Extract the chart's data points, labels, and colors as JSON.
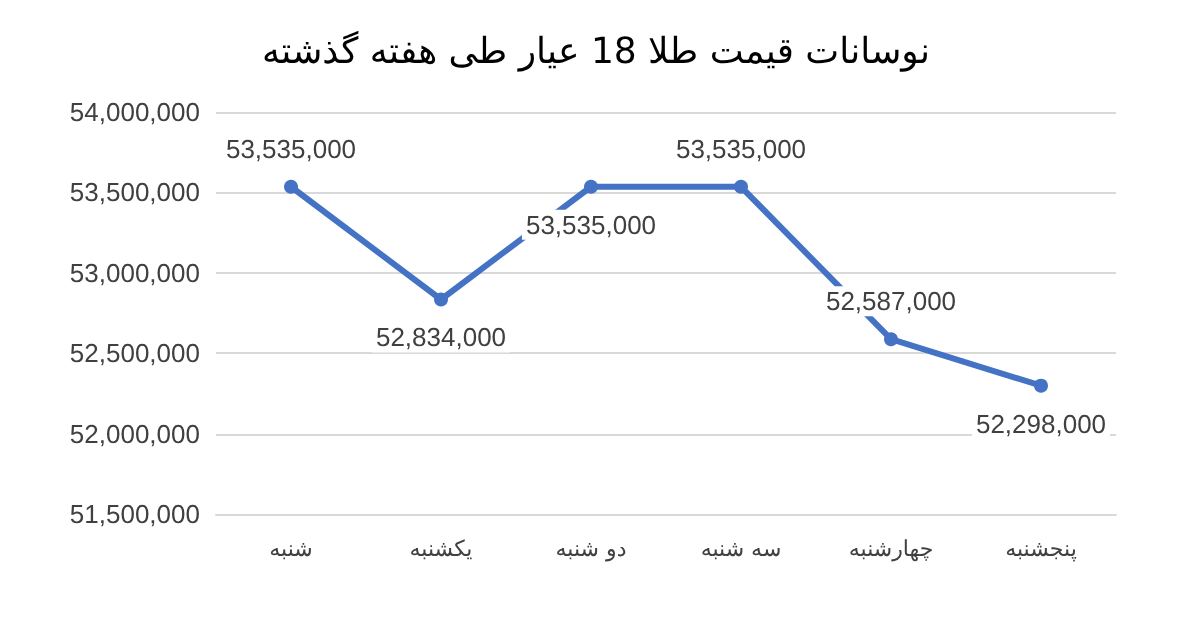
{
  "chart_data": {
    "type": "line",
    "title": "نوسانات قیمت طلا 18 عیار طی هفته گذشته",
    "categories": [
      "شنبه",
      "یکشنبه",
      "دو شنبه",
      "سه شنبه",
      "چهارشنبه",
      "پنجشنبه"
    ],
    "values": [
      53535000,
      52834000,
      53535000,
      53535000,
      52587000,
      52298000
    ],
    "value_labels": [
      "53,535,000",
      "52,834,000",
      "53,535,000",
      "53,535,000",
      "52,587,000",
      "52,298,000"
    ],
    "color": "#4472c4",
    "ylim": [
      51500000,
      54000000
    ],
    "yticks": [
      {
        "value": 51500000,
        "label": "51,500,000"
      },
      {
        "value": 52000000,
        "label": "52,000,000"
      },
      {
        "value": 52500000,
        "label": "52,500,000"
      },
      {
        "value": 53000000,
        "label": "53,000,000"
      },
      {
        "value": 53500000,
        "label": "53,500,000"
      },
      {
        "value": 54000000,
        "label": "54,000,000"
      }
    ],
    "grid": "y",
    "marker": "circle",
    "line_style": "solid"
  }
}
